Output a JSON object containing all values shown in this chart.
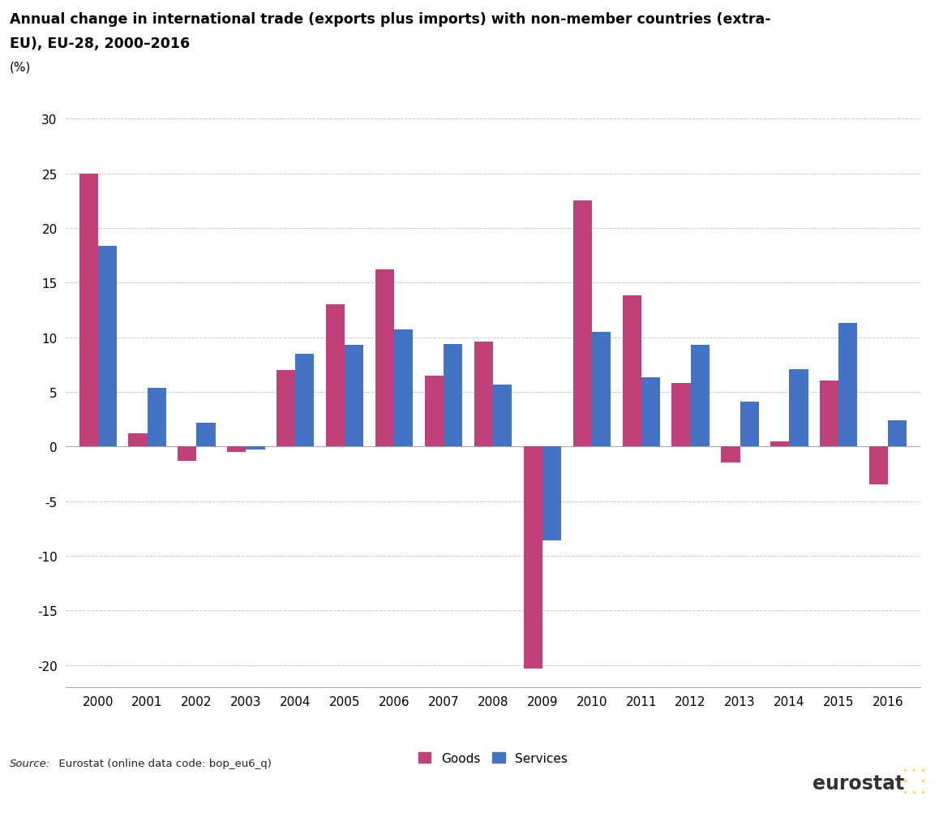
{
  "title_line1": "Annual change in international trade (exports plus imports) with non-member countries (extra-",
  "title_line2": "EU), EU-28, 2000–2016",
  "ylabel_pct": "(%)",
  "years": [
    2000,
    2001,
    2002,
    2003,
    2004,
    2005,
    2006,
    2007,
    2008,
    2009,
    2010,
    2011,
    2012,
    2013,
    2014,
    2015,
    2016
  ],
  "goods": [
    25.0,
    1.2,
    -1.3,
    -0.5,
    7.0,
    13.0,
    16.2,
    6.5,
    9.6,
    -20.3,
    22.5,
    13.8,
    5.8,
    -1.5,
    0.5,
    6.0,
    -3.5
  ],
  "services": [
    18.4,
    5.4,
    2.2,
    -0.3,
    8.5,
    9.3,
    10.7,
    9.4,
    5.7,
    -8.6,
    10.5,
    6.3,
    9.3,
    4.1,
    7.1,
    11.3,
    2.4
  ],
  "goods_color": "#C0417A",
  "services_color": "#4472C4",
  "ylim_min": -22,
  "ylim_max": 32,
  "yticks": [
    -20,
    -15,
    -10,
    -5,
    0,
    5,
    10,
    15,
    20,
    25,
    30
  ],
  "source_italic": "Source:",
  "source_normal": "  Eurostat (online data code: bop_eu6_q)",
  "background_color": "#ffffff",
  "grid_color": "#c8c8c8",
  "bar_width": 0.38
}
